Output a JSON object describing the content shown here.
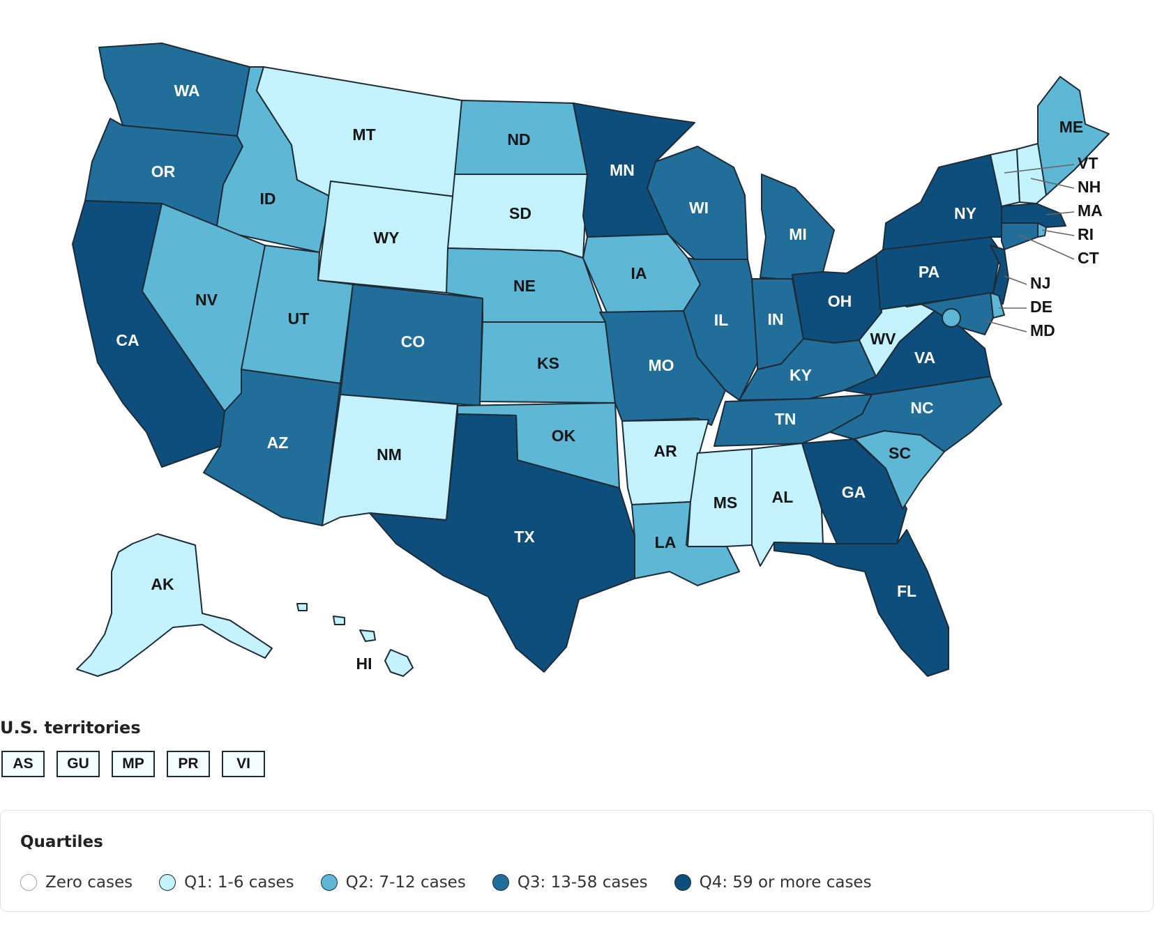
{
  "colors": {
    "zero": "#ffffff",
    "q1": "#c3f1fc",
    "q2": "#5db7d5",
    "q3": "#216e9b",
    "q4": "#0e4e7c"
  },
  "states": [
    {
      "id": "WA",
      "label": "WA",
      "q": "q3"
    },
    {
      "id": "OR",
      "label": "OR",
      "q": "q3"
    },
    {
      "id": "CA",
      "label": "CA",
      "q": "q4"
    },
    {
      "id": "ID",
      "label": "ID",
      "q": "q2"
    },
    {
      "id": "NV",
      "label": "NV",
      "q": "q2"
    },
    {
      "id": "MT",
      "label": "MT",
      "q": "q1"
    },
    {
      "id": "WY",
      "label": "WY",
      "q": "q1"
    },
    {
      "id": "UT",
      "label": "UT",
      "q": "q2"
    },
    {
      "id": "AZ",
      "label": "AZ",
      "q": "q3"
    },
    {
      "id": "CO",
      "label": "CO",
      "q": "q3"
    },
    {
      "id": "NM",
      "label": "NM",
      "q": "q1"
    },
    {
      "id": "ND",
      "label": "ND",
      "q": "q2"
    },
    {
      "id": "SD",
      "label": "SD",
      "q": "q1"
    },
    {
      "id": "NE",
      "label": "NE",
      "q": "q2"
    },
    {
      "id": "KS",
      "label": "KS",
      "q": "q2"
    },
    {
      "id": "OK",
      "label": "OK",
      "q": "q2"
    },
    {
      "id": "TX",
      "label": "TX",
      "q": "q4"
    },
    {
      "id": "MN",
      "label": "MN",
      "q": "q4"
    },
    {
      "id": "IA",
      "label": "IA",
      "q": "q2"
    },
    {
      "id": "MO",
      "label": "MO",
      "q": "q3"
    },
    {
      "id": "AR",
      "label": "AR",
      "q": "q1"
    },
    {
      "id": "LA",
      "label": "LA",
      "q": "q2"
    },
    {
      "id": "WI",
      "label": "WI",
      "q": "q3"
    },
    {
      "id": "IL",
      "label": "IL",
      "q": "q3"
    },
    {
      "id": "MI",
      "label": "MI",
      "q": "q3"
    },
    {
      "id": "IN",
      "label": "IN",
      "q": "q3"
    },
    {
      "id": "OH",
      "label": "OH",
      "q": "q4"
    },
    {
      "id": "KY",
      "label": "KY",
      "q": "q3"
    },
    {
      "id": "TN",
      "label": "TN",
      "q": "q3"
    },
    {
      "id": "MS",
      "label": "MS",
      "q": "q1"
    },
    {
      "id": "AL",
      "label": "AL",
      "q": "q1"
    },
    {
      "id": "GA",
      "label": "GA",
      "q": "q4"
    },
    {
      "id": "FL",
      "label": "FL",
      "q": "q4"
    },
    {
      "id": "SC",
      "label": "SC",
      "q": "q2"
    },
    {
      "id": "NC",
      "label": "NC",
      "q": "q3"
    },
    {
      "id": "VA",
      "label": "VA",
      "q": "q4"
    },
    {
      "id": "WV",
      "label": "WV",
      "q": "q1"
    },
    {
      "id": "PA",
      "label": "PA",
      "q": "q4"
    },
    {
      "id": "NY",
      "label": "NY",
      "q": "q4"
    },
    {
      "id": "ME",
      "label": "ME",
      "q": "q2"
    },
    {
      "id": "AK",
      "label": "AK",
      "q": "q1"
    },
    {
      "id": "HI",
      "label": "HI",
      "q": "q1"
    },
    {
      "id": "VT",
      "label": "VT",
      "q": "q1"
    },
    {
      "id": "NH",
      "label": "NH",
      "q": "q1"
    },
    {
      "id": "MA",
      "label": "MA",
      "q": "q4"
    },
    {
      "id": "RI",
      "label": "RI",
      "q": "q2"
    },
    {
      "id": "CT",
      "label": "CT",
      "q": "q3"
    },
    {
      "id": "NJ",
      "label": "NJ",
      "q": "q4"
    },
    {
      "id": "DE",
      "label": "DE",
      "q": "q2"
    },
    {
      "id": "MD",
      "label": "MD",
      "q": "q3"
    },
    {
      "id": "DC",
      "label": "",
      "q": "q2"
    }
  ],
  "territories": {
    "title": "U.S. territories",
    "items": [
      "AS",
      "GU",
      "MP",
      "PR",
      "VI"
    ]
  },
  "legend": {
    "title": "Quartiles",
    "items": [
      {
        "label": "Zero cases",
        "q": "zero"
      },
      {
        "label": "Q1: 1-6 cases",
        "q": "q1"
      },
      {
        "label": "Q2: 7-12 cases",
        "q": "q2"
      },
      {
        "label": "Q3: 13-58 cases",
        "q": "q3"
      },
      {
        "label": "Q4: 59 or more cases",
        "q": "q4"
      }
    ]
  }
}
